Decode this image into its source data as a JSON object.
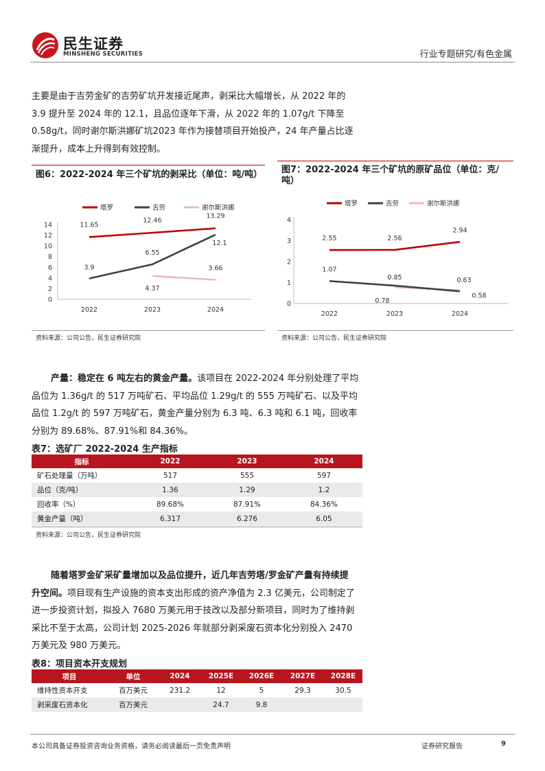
{
  "header": {
    "logo_cn": "民生证券",
    "logo_en": "MINSHENG SECURITIES",
    "section": "行业专题研究/有色金属"
  },
  "para1": [
    "主要是由于吉劳金矿的吉劳矿坑开发接近尾声，剥采比大幅增长，从 2022 年的",
    "3.9 提升至 2024 年的 12.1，且品位逐年下滑，从 2022 年的 1.07g/t 下降至",
    "0.58g/t，同时谢尔斯洪娜矿坑2023 年作为接替项目开始投产，24 年产量占比逐",
    "渐提升，成本上升得到有效控制。"
  ],
  "fig6": {
    "title": "图6：2022-2024 年三个矿坑的剥采比（单位：吨/吨）",
    "source": "资料来源：公司公告，民生证券研究院"
  },
  "fig7": {
    "title_line1": "图7：2022-2024 年三个矿坑的原矿品位（单位：克/",
    "title_line2": "吨）",
    "source": "资料来源：公司公告，民生证券研究院"
  },
  "chart_data": [
    {
      "type": "line",
      "categories": [
        "2022",
        "2023",
        "2024"
      ],
      "series": [
        {
          "name": "塔罗",
          "values": [
            11.65,
            12.46,
            13.29
          ],
          "color": "#c00000"
        },
        {
          "name": "吉劳",
          "values": [
            3.9,
            6.55,
            12.1
          ],
          "color": "#404040"
        },
        {
          "name": "谢尔斯洪娜",
          "values": [
            null,
            4.37,
            3.66
          ],
          "color": "#f0b8b8"
        }
      ],
      "data_labels": [
        [
          "11.65",
          "12.46",
          "13.29"
        ],
        [
          "3.9",
          "6.55",
          "12.1"
        ],
        [
          "",
          "4.37",
          "3.66"
        ]
      ],
      "yticks": [
        "0",
        "2",
        "4",
        "6",
        "8",
        "10",
        "12",
        "14"
      ],
      "ylim": [
        0,
        14
      ],
      "legend": "top"
    },
    {
      "type": "line",
      "categories": [
        "2022",
        "2023",
        "2024"
      ],
      "series": [
        {
          "name": "塔罗",
          "values": [
            2.55,
            2.56,
            2.94
          ],
          "color": "#c00000"
        },
        {
          "name": "吉劳",
          "values": [
            1.07,
            0.85,
            0.58
          ],
          "color": "#404040"
        },
        {
          "name": "谢尔斯洪娜",
          "values": [
            null,
            0.78,
            0.63
          ],
          "color": "#f0b8b8"
        }
      ],
      "data_labels": [
        [
          "2.55",
          "2.56",
          "2.94"
        ],
        [
          "1.07",
          "0.85",
          "0.58"
        ],
        [
          "",
          "0.78",
          "0.63"
        ]
      ],
      "yticks": [
        "0",
        "1",
        "2",
        "3",
        "4"
      ],
      "ylim": [
        0,
        4
      ],
      "legend": "top"
    }
  ],
  "para2": {
    "bold": "产量：稳定在 6 吨左右的黄金产量。",
    "lines": [
      "该项目在 2022-2024 年分别处理了平均",
      "品位为 1.36g/t 的 517 万吨矿石、平均品位 1.29g/t 的 555 万吨矿石、以及平均",
      "品位 1.2g/t 的 597 万吨矿石，黄金产量分别为 6.3 吨、6.3 吨和 6.1 吨，回收率",
      "分别为 89.68%、87.91%和 84.36%。"
    ]
  },
  "table7": {
    "title": "表7：选矿厂 2022-2024 生产指标",
    "headers": [
      "指标",
      "2022",
      "2023",
      "2024"
    ],
    "rows": [
      [
        "矿石处理量（万吨）",
        "517",
        "555",
        "597"
      ],
      [
        "品位（克/吨）",
        "1.36",
        "1.29",
        "1.2"
      ],
      [
        "回收率（%）",
        "89.68%",
        "87.91%",
        "84.36%"
      ],
      [
        "黄金产量（吨）",
        "6.317",
        "6.276",
        "6.05"
      ]
    ],
    "source": "资料来源：公司公告，民生证券研究院"
  },
  "para3": {
    "bold1": "随着塔罗金矿采矿量增加以及品位提升，近几年吉劳塔/罗金矿产量有持续提",
    "bold2": "升空间。",
    "line2_rest": "项目现有生产设施的资本支出形成的资产净值为 2.3 亿美元，公司制定了",
    "lines": [
      "进一步投资计划，拟投入 7680 万美元用于技改以及部分新项目，同时为了维持剥",
      "采比不至于太高，公司计划 2025-2026 年就部分剥采废石资本化分别投入 2470",
      "万美元及 980 万美元。"
    ]
  },
  "table8": {
    "title": "表8：项目资本开支规划",
    "headers": [
      "项目",
      "单位",
      "2024",
      "2025E",
      "2026E",
      "2027E",
      "2028E"
    ],
    "rows": [
      [
        "维持性资本开支",
        "百万美元",
        "231.2",
        "12",
        "5",
        "29.3",
        "30.5"
      ],
      [
        "剥采废石资本化",
        "百万美元",
        "",
        "24.7",
        "9.8",
        "",
        ""
      ]
    ]
  },
  "footer": {
    "disclaimer": "本公司具备证券投资咨询业务资格，请务必阅读最后一页免责声明",
    "report_type": "证券研究报告",
    "page": "9"
  }
}
